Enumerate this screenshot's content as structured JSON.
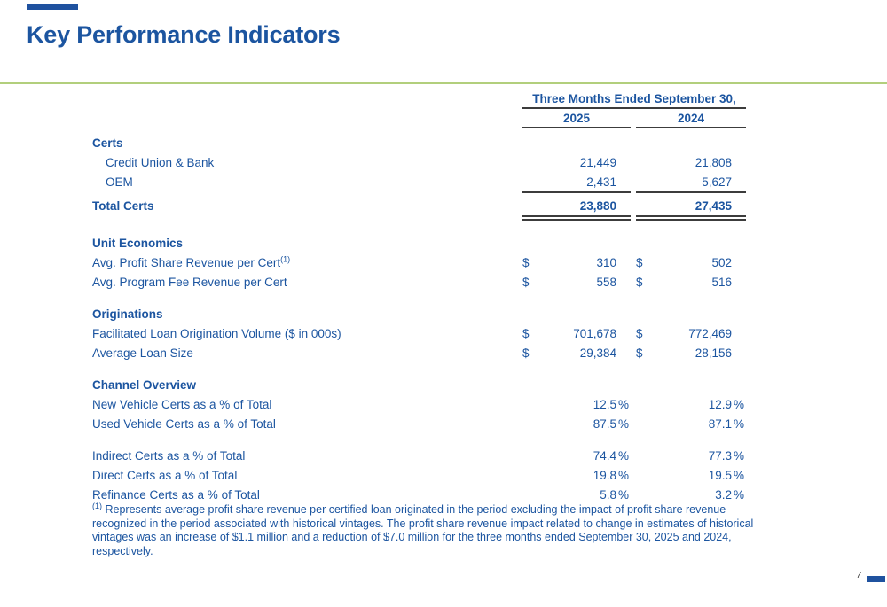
{
  "slide": {
    "title": "Key Performance Indicators",
    "page_number": "7",
    "accent_color": "#1F529F",
    "divider_color": "#B2CF7C",
    "text_color": "#1C55A0"
  },
  "symbols": {
    "currency": "$",
    "percent": "%"
  },
  "table": {
    "period_header": "Three Months Ended September 30,",
    "col_years": [
      "2025",
      "2024"
    ],
    "rows": [
      {
        "type": "section",
        "label": "Certs"
      },
      {
        "type": "item",
        "label": "Credit Union & Bank",
        "indent": true,
        "v1": "21,449",
        "v2": "21,808"
      },
      {
        "type": "item",
        "label": "OEM",
        "indent": true,
        "v1": "2,431",
        "v2": "5,627"
      },
      {
        "type": "rule",
        "style": "single"
      },
      {
        "type": "total",
        "label": "Total Certs",
        "v1": "23,880",
        "v2": "27,435"
      },
      {
        "type": "rule",
        "style": "double"
      },
      {
        "type": "gap",
        "h": 12
      },
      {
        "type": "section",
        "label": "Unit Economics"
      },
      {
        "type": "item",
        "label": "Avg. Profit Share Revenue per Cert",
        "sup": "(1)",
        "dollar": true,
        "v1": "310",
        "v2": "502"
      },
      {
        "type": "item",
        "label": "Avg. Program Fee Revenue per Cert",
        "dollar": true,
        "v1": "558",
        "v2": "516"
      },
      {
        "type": "gap",
        "h": 14
      },
      {
        "type": "section",
        "label": "Originations"
      },
      {
        "type": "item",
        "label": "Facilitated Loan Origination Volume ($ in 000s)",
        "dollar": true,
        "v1": "701,678",
        "v2": "772,469"
      },
      {
        "type": "item",
        "label": "Average Loan Size",
        "dollar": true,
        "v1": "29,384",
        "v2": "28,156"
      },
      {
        "type": "gap",
        "h": 14
      },
      {
        "type": "section",
        "label": "Channel Overview"
      },
      {
        "type": "item",
        "label": "New Vehicle Certs as a % of Total",
        "percent": true,
        "v1": "12.5",
        "v2": "12.9"
      },
      {
        "type": "item",
        "label": "Used Vehicle Certs as a % of Total",
        "percent": true,
        "v1": "87.5",
        "v2": "87.1"
      },
      {
        "type": "gap",
        "h": 14
      },
      {
        "type": "item",
        "label": "Indirect Certs as a % of Total",
        "percent": true,
        "v1": "74.4",
        "v2": "77.3"
      },
      {
        "type": "item",
        "label": "Direct Certs as a % of Total",
        "percent": true,
        "v1": "19.8",
        "v2": "19.5"
      },
      {
        "type": "item",
        "label": "Refinance Certs as a % of Total",
        "percent": true,
        "v1": "5.8",
        "v2": "3.2"
      }
    ]
  },
  "footnote": {
    "marker": "(1)",
    "text": " Represents average profit share revenue per certified loan originated in the period excluding the impact of profit share revenue recognized in the period associated with historical vintages. The profit share revenue impact related to change in estimates of historical vintages was an increase of $1.1 million and a reduction of $7.0 million for the three months ended September 30, 2025 and 2024, respectively."
  }
}
